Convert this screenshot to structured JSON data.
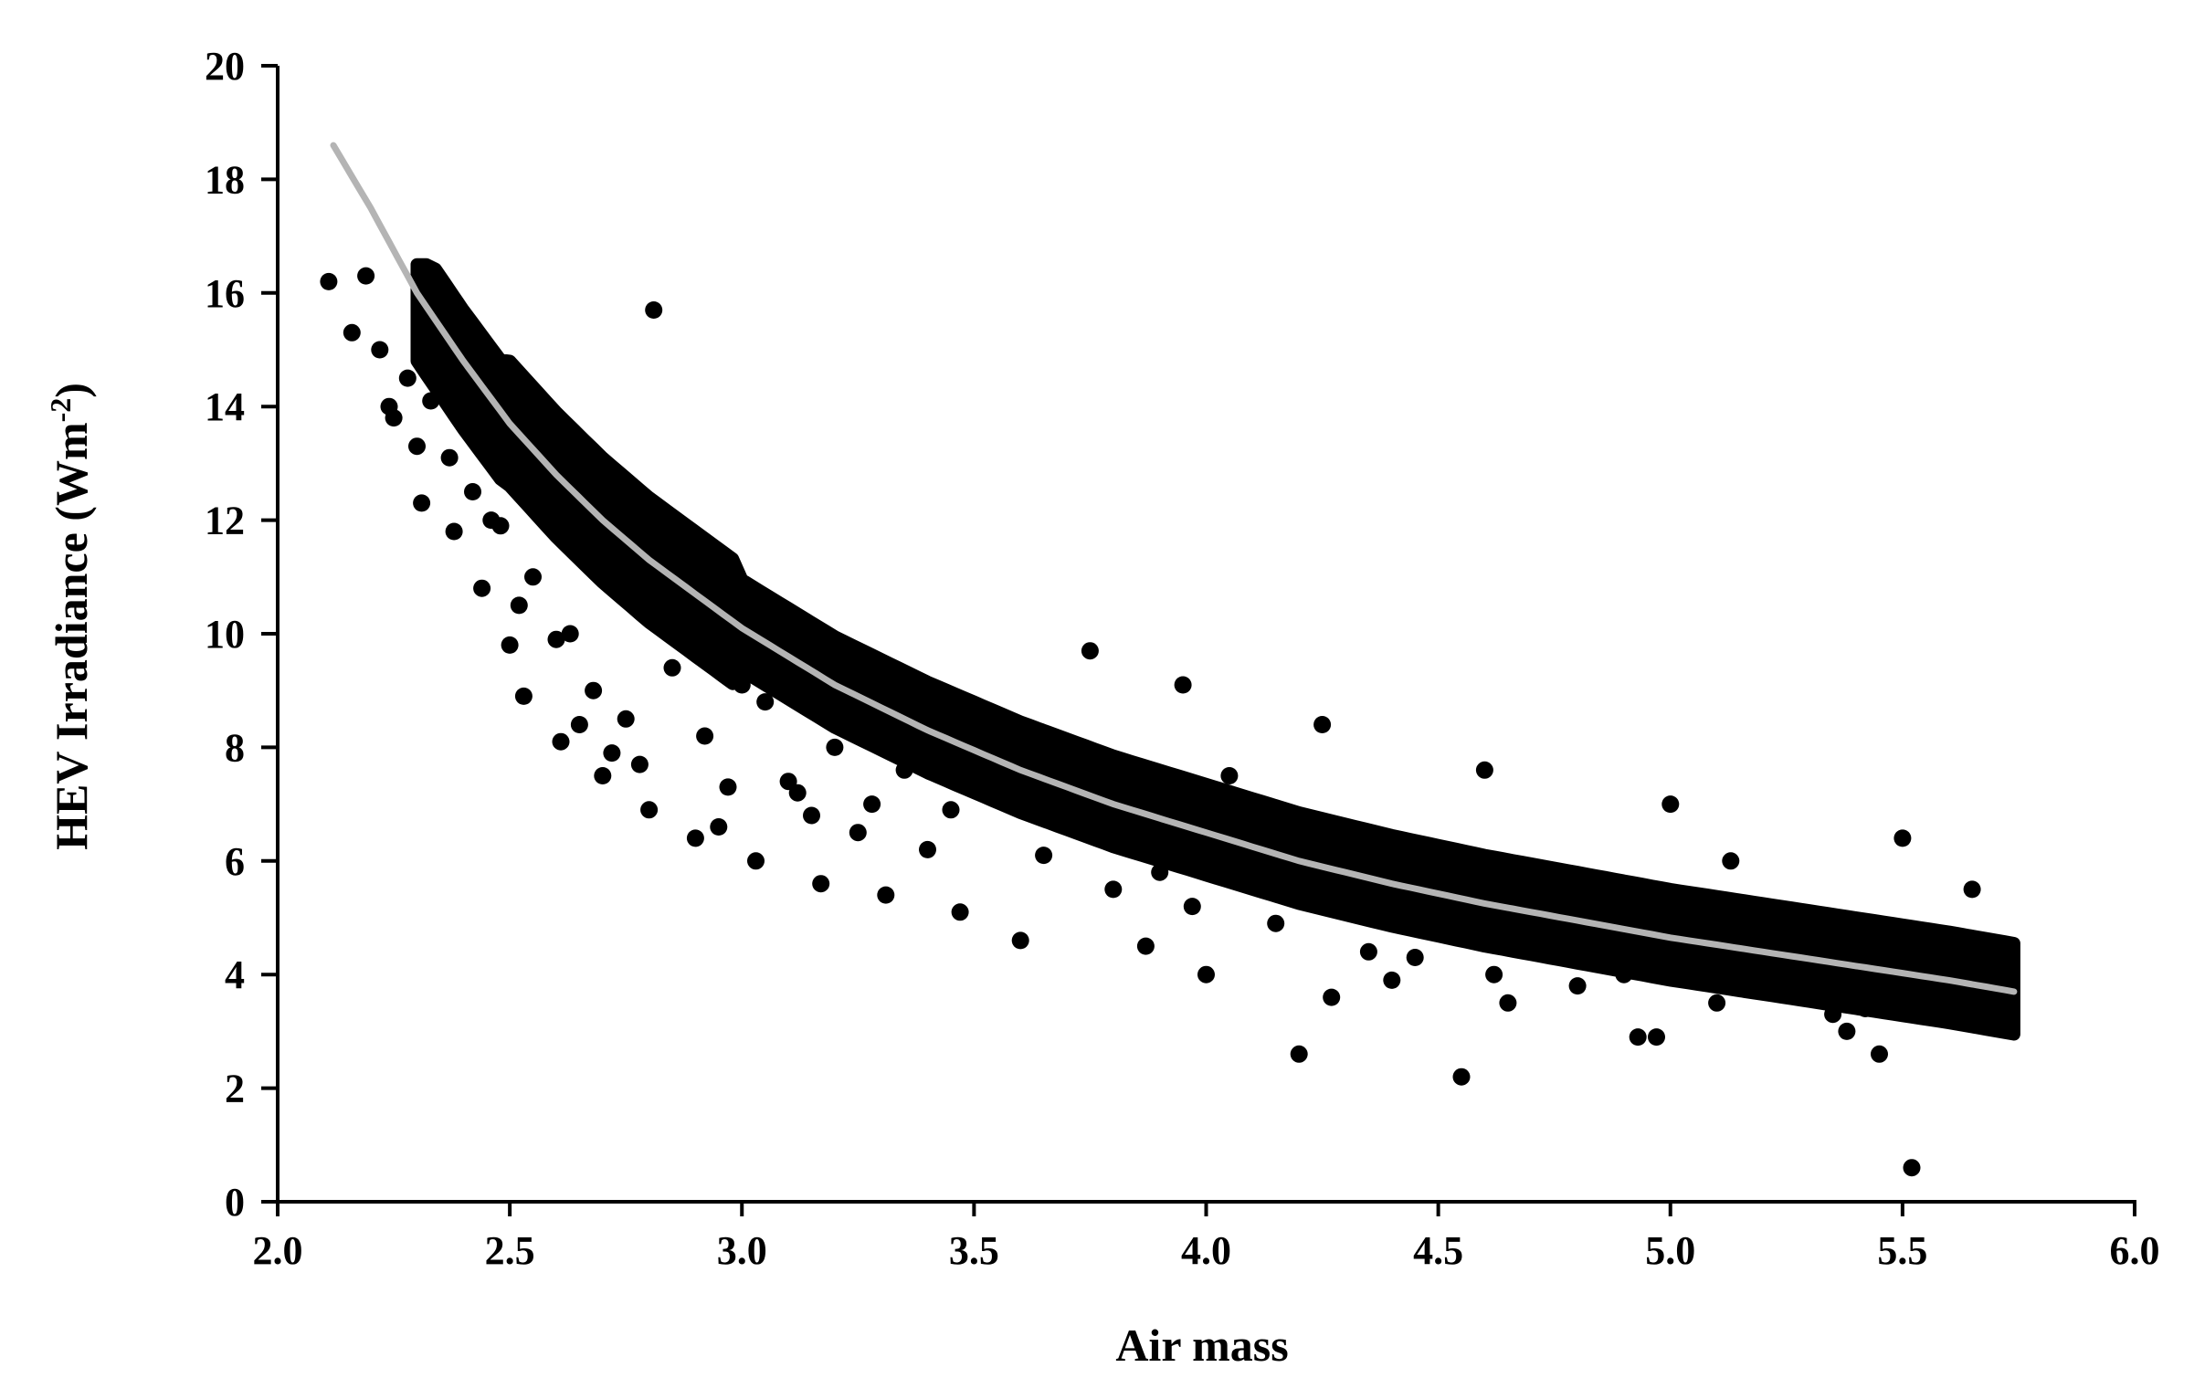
{
  "chart_data": {
    "type": "scatter",
    "title": "",
    "xlabel": "Air mass",
    "ylabel_main": "HEV Irradiance (Wm",
    "ylabel_sup": "-2",
    "ylabel_close": ")",
    "xlim": [
      2.0,
      6.0
    ],
    "ylim": [
      0,
      20
    ],
    "xticks": [
      "2.0",
      "2.5",
      "3.0",
      "3.5",
      "4.0",
      "4.5",
      "5.0",
      "5.5",
      "6.0"
    ],
    "yticks": [
      "0",
      "2",
      "4",
      "6",
      "8",
      "10",
      "12",
      "14",
      "16",
      "18",
      "20"
    ],
    "grid": false,
    "legend": "none",
    "point_color": "#000000",
    "fit_color": "#b4b4b4",
    "series": [
      {
        "kind": "scatter",
        "description_points": "dense band of observations",
        "x": [
          2.11,
          2.16,
          2.19,
          2.22,
          2.24,
          2.25,
          2.28,
          2.3,
          2.31,
          2.33,
          2.35,
          2.37,
          2.38,
          2.4,
          2.42,
          2.44,
          2.46,
          2.48,
          2.5,
          2.52,
          2.53,
          2.55,
          2.57,
          2.6,
          2.61,
          2.63,
          2.65,
          2.68,
          2.7,
          2.72,
          2.75,
          2.78,
          2.8,
          2.81,
          2.85,
          2.88,
          2.9,
          2.92,
          2.95,
          2.97,
          3.0,
          3.03,
          3.05,
          3.1,
          3.12,
          3.15,
          3.17,
          3.2,
          3.25,
          3.28,
          3.31,
          3.35,
          3.4,
          3.45,
          3.47,
          3.5,
          3.55,
          3.6,
          3.65,
          3.7,
          3.75,
          3.8,
          3.85,
          3.87,
          3.9,
          3.95,
          3.97,
          4.0,
          4.05,
          4.1,
          4.15,
          4.2,
          4.25,
          4.27,
          4.3,
          4.35,
          4.4,
          4.45,
          4.5,
          4.55,
          4.6,
          4.62,
          4.65,
          4.7,
          4.75,
          4.8,
          4.85,
          4.9,
          4.93,
          4.97,
          5.0,
          5.05,
          5.1,
          5.13,
          5.2,
          5.25,
          5.3,
          5.35,
          5.38,
          5.42,
          5.45,
          5.5,
          5.52,
          5.55,
          5.6,
          5.65,
          5.7,
          5.73
        ],
        "y": [
          16.2,
          15.3,
          16.3,
          15.0,
          14.0,
          13.8,
          14.5,
          13.3,
          12.3,
          14.1,
          15.4,
          13.1,
          11.8,
          14.3,
          12.5,
          10.8,
          12.0,
          11.9,
          9.8,
          10.5,
          8.9,
          11.0,
          12.2,
          9.9,
          8.1,
          10.0,
          8.4,
          9.0,
          7.5,
          7.9,
          8.5,
          7.7,
          6.9,
          15.7,
          9.4,
          10.1,
          6.4,
          8.2,
          6.6,
          7.3,
          9.1,
          6.0,
          8.8,
          7.4,
          7.2,
          6.8,
          5.6,
          8.0,
          6.5,
          7.0,
          5.4,
          7.6,
          6.2,
          6.9,
          5.1,
          8.7,
          7.1,
          4.6,
          6.1,
          6.7,
          9.7,
          5.5,
          6.3,
          4.5,
          5.8,
          9.1,
          5.2,
          4.0,
          7.5,
          5.7,
          4.9,
          2.6,
          8.4,
          3.6,
          6.4,
          4.4,
          3.9,
          4.3,
          5.3,
          2.2,
          7.6,
          4.0,
          3.5,
          5.1,
          4.6,
          3.8,
          4.2,
          4.0,
          2.9,
          2.9,
          7.0,
          4.4,
          3.5,
          6.0,
          4.1,
          3.9,
          3.6,
          3.3,
          3.0,
          3.4,
          2.6,
          6.4,
          0.6,
          3.3,
          4.1,
          5.5,
          3.1,
          3.4
        ]
      },
      {
        "kind": "fit",
        "x": [
          2.12,
          2.2,
          2.3,
          2.4,
          2.5,
          2.6,
          2.7,
          2.8,
          2.9,
          3.0,
          3.2,
          3.4,
          3.6,
          3.8,
          4.0,
          4.2,
          4.4,
          4.6,
          4.8,
          5.0,
          5.2,
          5.4,
          5.6,
          5.74
        ],
        "y": [
          18.6,
          17.5,
          16.0,
          14.8,
          13.7,
          12.8,
          12.0,
          11.3,
          10.7,
          10.1,
          9.1,
          8.3,
          7.6,
          7.0,
          6.5,
          6.0,
          5.6,
          5.25,
          4.95,
          4.65,
          4.4,
          4.15,
          3.9,
          3.7
        ]
      }
    ]
  }
}
